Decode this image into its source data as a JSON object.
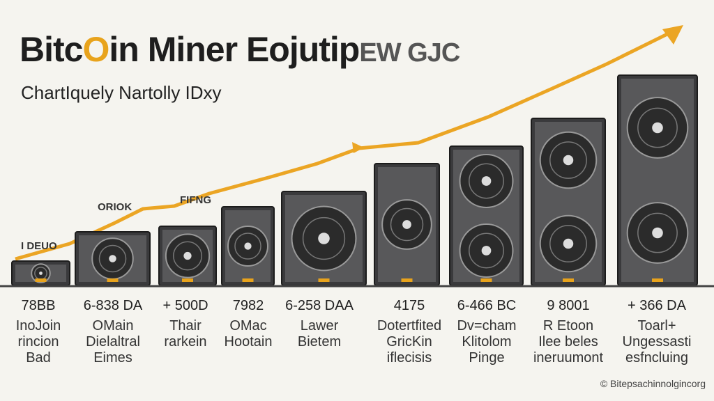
{
  "header": {
    "title_parts": [
      "Bitc",
      "O",
      "in Miner Eojutip",
      "EW GJC"
    ],
    "subtitle": "ChartIquely Nartolly IDxy"
  },
  "annotations": [
    "I DEUO",
    "ORIOK",
    "FIFNG"
  ],
  "items": [
    {
      "value": "78BB",
      "lines": [
        "InoJoin",
        "rincion",
        "Bad"
      ]
    },
    {
      "value": "6-838 DA",
      "lines": [
        "OMain",
        "Dielaltral",
        "Eimes"
      ]
    },
    {
      "value": "+ 500D",
      "lines": [
        "Thair",
        "rarkein"
      ]
    },
    {
      "value": "7982",
      "lines": [
        "OMac",
        "Hootain"
      ]
    },
    {
      "value": "6-258 DAA",
      "lines": [
        "Lawer",
        "Bietem"
      ]
    },
    {
      "value": "4175",
      "lines": [
        "Dotertfited",
        "GricKin",
        "iflecisis"
      ]
    },
    {
      "value": "6-466 BC",
      "lines": [
        "Dv=cham",
        "Klitolom",
        "Pinge"
      ]
    },
    {
      "value": "9 8001",
      "lines": [
        "R Etoon",
        "Ilee beles",
        "ineruumont"
      ]
    },
    {
      "value": "+ 366 DA",
      "lines": [
        "Toarl+",
        "Ungessasti",
        "esfncluing"
      ]
    }
  ],
  "footer": "© Bitepsachinnolgincorg"
}
